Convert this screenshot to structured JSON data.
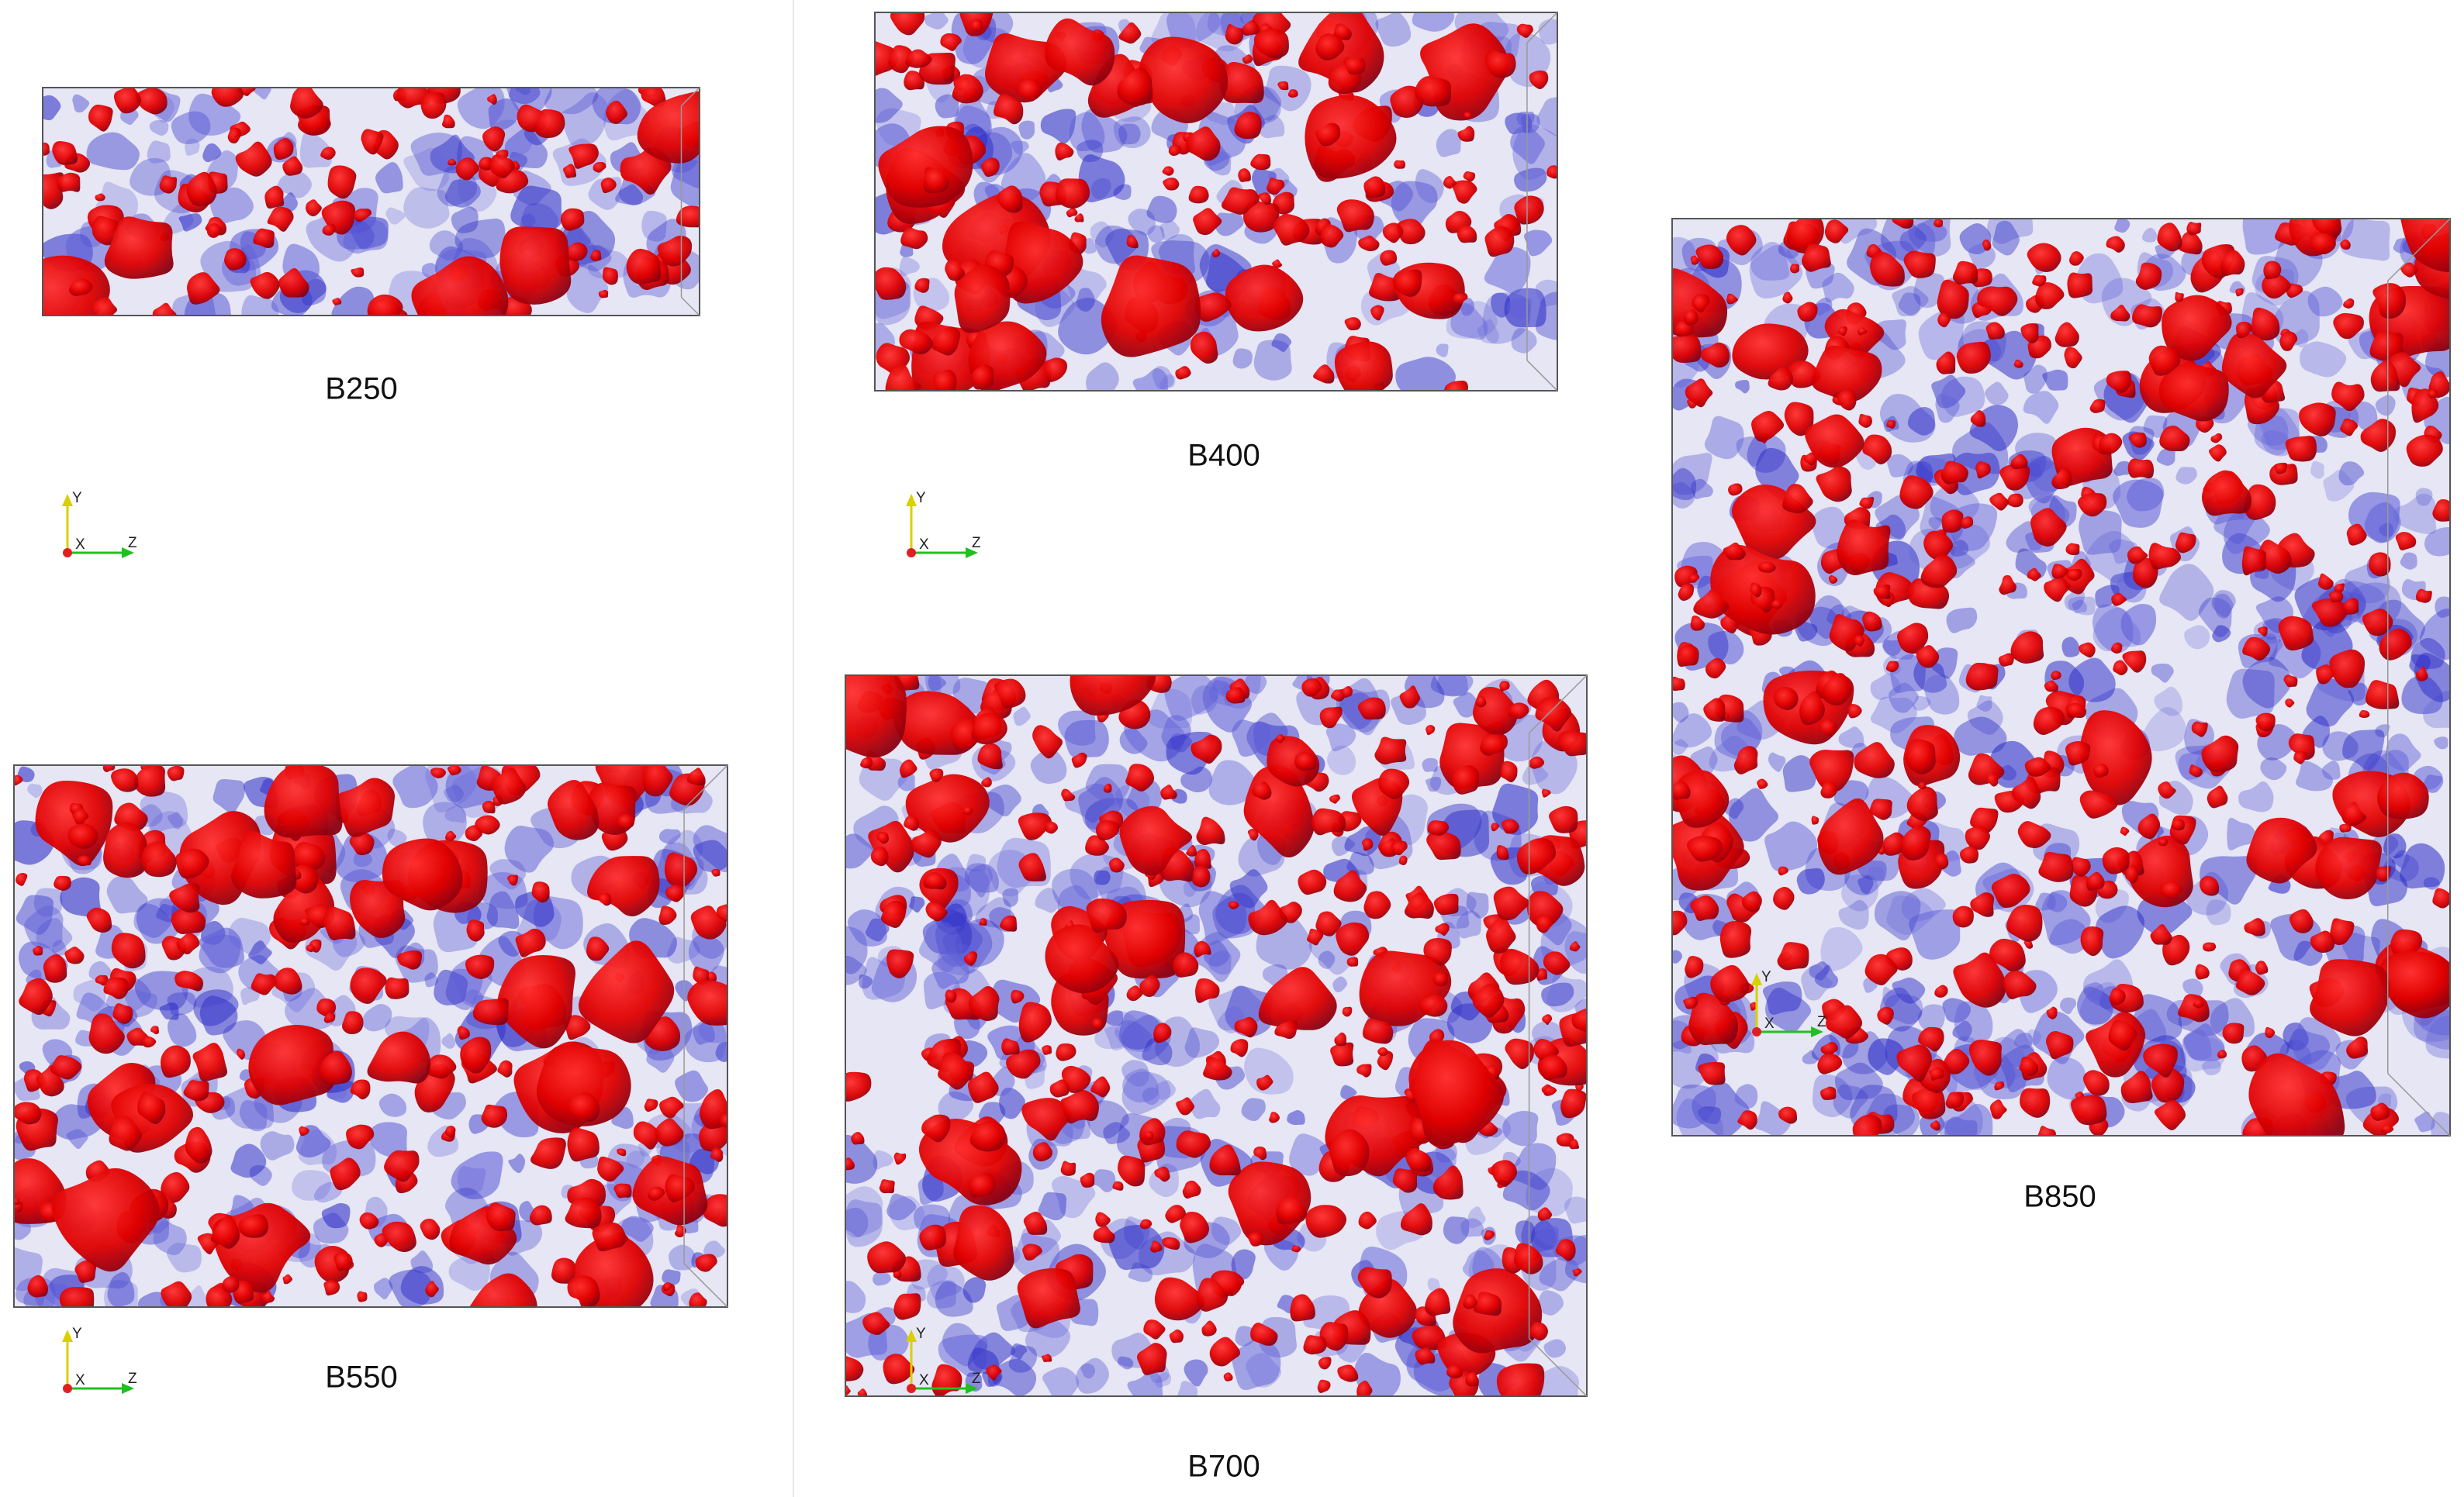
{
  "panels": [
    {
      "label": "B250"
    },
    {
      "label": "B400"
    },
    {
      "label": "B550"
    },
    {
      "label": "B700"
    },
    {
      "label": "B850"
    }
  ],
  "axis_triad": {
    "y": "Y",
    "x": "X",
    "z": "Z"
  }
}
